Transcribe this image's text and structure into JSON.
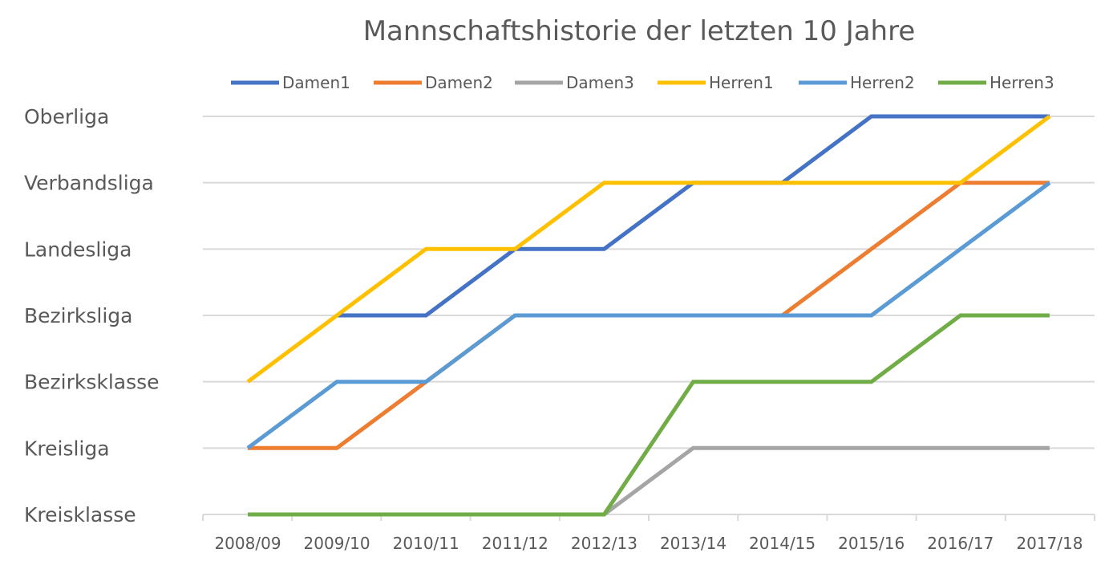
{
  "chart_data": {
    "type": "line",
    "title": "Mannschaftshistorie der letzten 10 Jahre",
    "categories": [
      "2008/09",
      "2009/10",
      "2010/11",
      "2011/12",
      "2012/13",
      "2013/14",
      "2014/15",
      "2015/16",
      "2016/17",
      "2017/18"
    ],
    "y_categories": [
      "Kreisklasse",
      "Kreisliga",
      "Bezirksklasse",
      "Bezirksliga",
      "Landesliga",
      "Verbandsliga",
      "Oberliga"
    ],
    "ylim": [
      0,
      6
    ],
    "grid": true,
    "legend_position": "top",
    "series": [
      {
        "name": "Damen1",
        "color": "#4472c4",
        "values": [
          null,
          3,
          3,
          4,
          4,
          5,
          5,
          6,
          6,
          6
        ]
      },
      {
        "name": "Damen2",
        "color": "#ed7d31",
        "values": [
          1,
          1,
          2,
          3,
          3,
          3,
          3,
          4,
          5,
          5
        ]
      },
      {
        "name": "Damen3",
        "color": "#a5a5a5",
        "values": [
          null,
          null,
          null,
          null,
          0,
          1,
          1,
          1,
          1,
          1
        ]
      },
      {
        "name": "Herren1",
        "color": "#ffc000",
        "values": [
          2,
          3,
          4,
          4,
          5,
          5,
          5,
          5,
          5,
          6
        ]
      },
      {
        "name": "Herren2",
        "color": "#5b9bd5",
        "values": [
          1,
          2,
          2,
          3,
          3,
          3,
          3,
          3,
          4,
          5
        ]
      },
      {
        "name": "Herren3",
        "color": "#70ad47",
        "values": [
          0,
          0,
          0,
          0,
          0,
          2,
          2,
          2,
          3,
          3
        ]
      }
    ]
  }
}
